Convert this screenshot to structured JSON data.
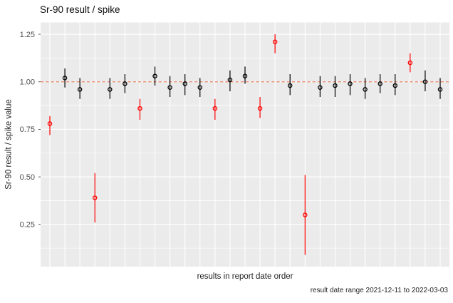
{
  "chart_data": {
    "type": "scatter",
    "title": "Sr-90 result / spike",
    "xlabel": "results in report date order",
    "ylabel": "Sr-90 result / spike value",
    "caption": "result date range 2021-12-11 to 2022-03-03",
    "yticks": [
      0.25,
      0.5,
      0.75,
      1.0,
      1.25
    ],
    "ylim": [
      0.028,
      1.312
    ],
    "x_positions": 27,
    "grid": "major-and-minor, ggplot grey theme",
    "legend": "none",
    "reference_line": {
      "y": 1.0,
      "style": "dashed"
    },
    "series": [
      {
        "name": "pointrange",
        "points": [
          {
            "i": 1,
            "value": 0.78,
            "lo": 0.72,
            "hi": 0.82,
            "flagged": true
          },
          {
            "i": 2,
            "value": 1.02,
            "lo": 0.97,
            "hi": 1.07,
            "flagged": false
          },
          {
            "i": 3,
            "value": 0.96,
            "lo": 0.91,
            "hi": 1.02,
            "flagged": false
          },
          {
            "i": 4,
            "value": 0.39,
            "lo": 0.26,
            "hi": 0.52,
            "flagged": true
          },
          {
            "i": 5,
            "value": 0.96,
            "lo": 0.91,
            "hi": 1.02,
            "flagged": false
          },
          {
            "i": 6,
            "value": 0.99,
            "lo": 0.94,
            "hi": 1.04,
            "flagged": false
          },
          {
            "i": 7,
            "value": 0.86,
            "lo": 0.8,
            "hi": 0.91,
            "flagged": true
          },
          {
            "i": 8,
            "value": 1.03,
            "lo": 0.98,
            "hi": 1.08,
            "flagged": false
          },
          {
            "i": 9,
            "value": 0.97,
            "lo": 0.92,
            "hi": 1.03,
            "flagged": false
          },
          {
            "i": 10,
            "value": 0.99,
            "lo": 0.93,
            "hi": 1.04,
            "flagged": false
          },
          {
            "i": 11,
            "value": 0.97,
            "lo": 0.92,
            "hi": 1.02,
            "flagged": false
          },
          {
            "i": 12,
            "value": 0.86,
            "lo": 0.8,
            "hi": 0.91,
            "flagged": true
          },
          {
            "i": 13,
            "value": 1.01,
            "lo": 0.95,
            "hi": 1.06,
            "flagged": false
          },
          {
            "i": 14,
            "value": 1.03,
            "lo": 0.99,
            "hi": 1.08,
            "flagged": false
          },
          {
            "i": 15,
            "value": 0.86,
            "lo": 0.81,
            "hi": 0.92,
            "flagged": true
          },
          {
            "i": 16,
            "value": 1.21,
            "lo": 1.15,
            "hi": 1.25,
            "flagged": true
          },
          {
            "i": 17,
            "value": 0.98,
            "lo": 0.93,
            "hi": 1.04,
            "flagged": false
          },
          {
            "i": 18,
            "value": 0.3,
            "lo": 0.09,
            "hi": 0.51,
            "flagged": true
          },
          {
            "i": 19,
            "value": 0.97,
            "lo": 0.92,
            "hi": 1.03,
            "flagged": false
          },
          {
            "i": 20,
            "value": 0.98,
            "lo": 0.92,
            "hi": 1.03,
            "flagged": false
          },
          {
            "i": 21,
            "value": 0.99,
            "lo": 0.93,
            "hi": 1.04,
            "flagged": false
          },
          {
            "i": 22,
            "value": 0.96,
            "lo": 0.91,
            "hi": 1.02,
            "flagged": false
          },
          {
            "i": 23,
            "value": 0.99,
            "lo": 0.94,
            "hi": 1.04,
            "flagged": false
          },
          {
            "i": 24,
            "value": 0.98,
            "lo": 0.93,
            "hi": 1.04,
            "flagged": false
          },
          {
            "i": 25,
            "value": 1.1,
            "lo": 1.05,
            "hi": 1.15,
            "flagged": true
          },
          {
            "i": 26,
            "value": 1.0,
            "lo": 0.95,
            "hi": 1.06,
            "flagged": false
          },
          {
            "i": 27,
            "value": 0.96,
            "lo": 0.91,
            "hi": 1.02,
            "flagged": false
          }
        ]
      }
    ],
    "colors": {
      "normal_point": "#000000",
      "flagged_point": "#FF0000",
      "reference_line": "#E8866B",
      "panel_background": "#EBEBEB",
      "gridline": "#FFFFFF",
      "tick_label": "#4D4D4D",
      "tick_mark": "#333333"
    }
  }
}
